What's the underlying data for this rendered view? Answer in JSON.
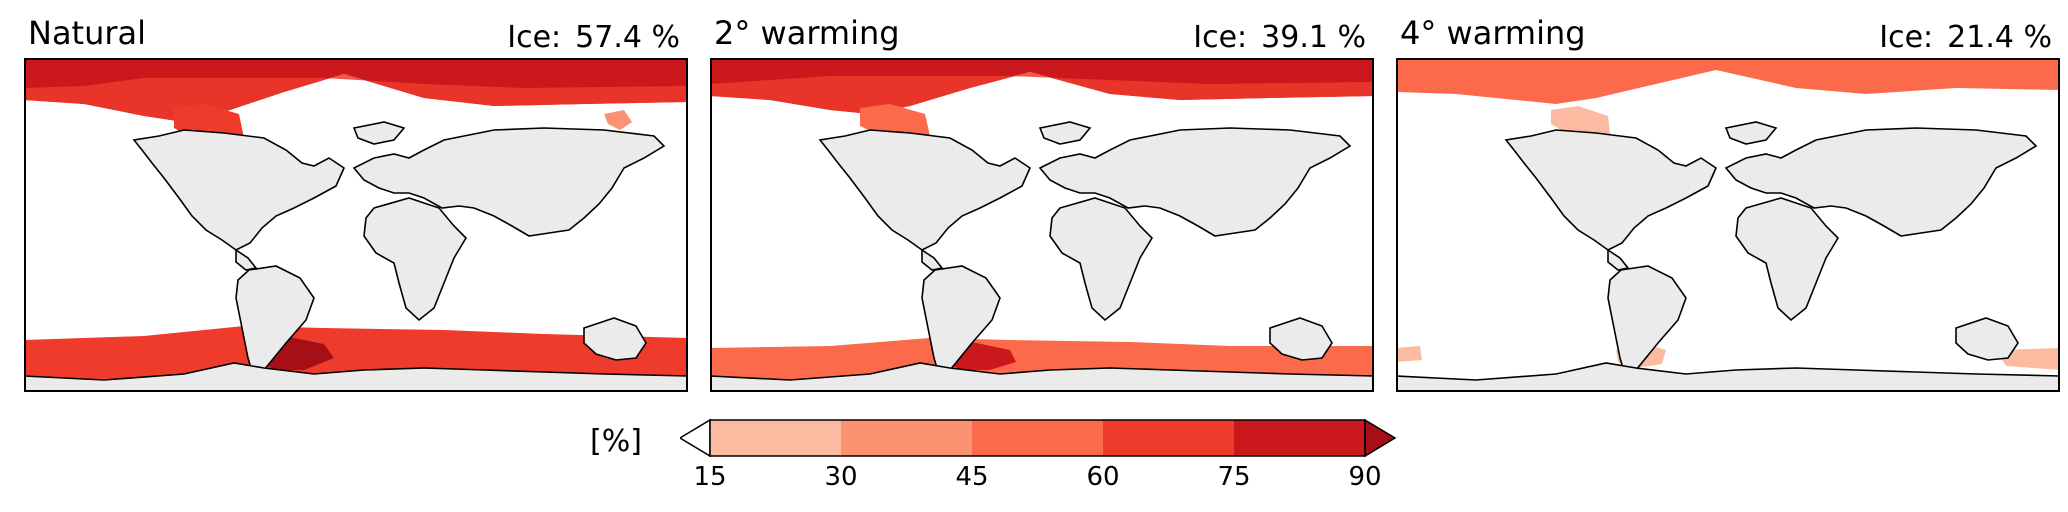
{
  "panels": [
    {
      "title": "Natural",
      "ice_label": "Ice:",
      "ice_value": "57.4 %"
    },
    {
      "title": "2° warming",
      "ice_label": "Ice:",
      "ice_value": "39.1 %"
    },
    {
      "title": "4° warming",
      "ice_label": "Ice:",
      "ice_value": "21.4 %"
    }
  ],
  "colorbar": {
    "unit": "[%]",
    "ticks": [
      "15",
      "30",
      "45",
      "60",
      "75",
      "90"
    ],
    "colors": [
      "#fcbba1",
      "#fc9272",
      "#fb6a4a",
      "#ef3b2c",
      "#cb181d"
    ],
    "over_color": "#a50f15",
    "under_color": "#ffffff"
  },
  "colors": {
    "land": "#ebebeb",
    "ocean": "#ffffff",
    "coast": "#000000"
  }
}
